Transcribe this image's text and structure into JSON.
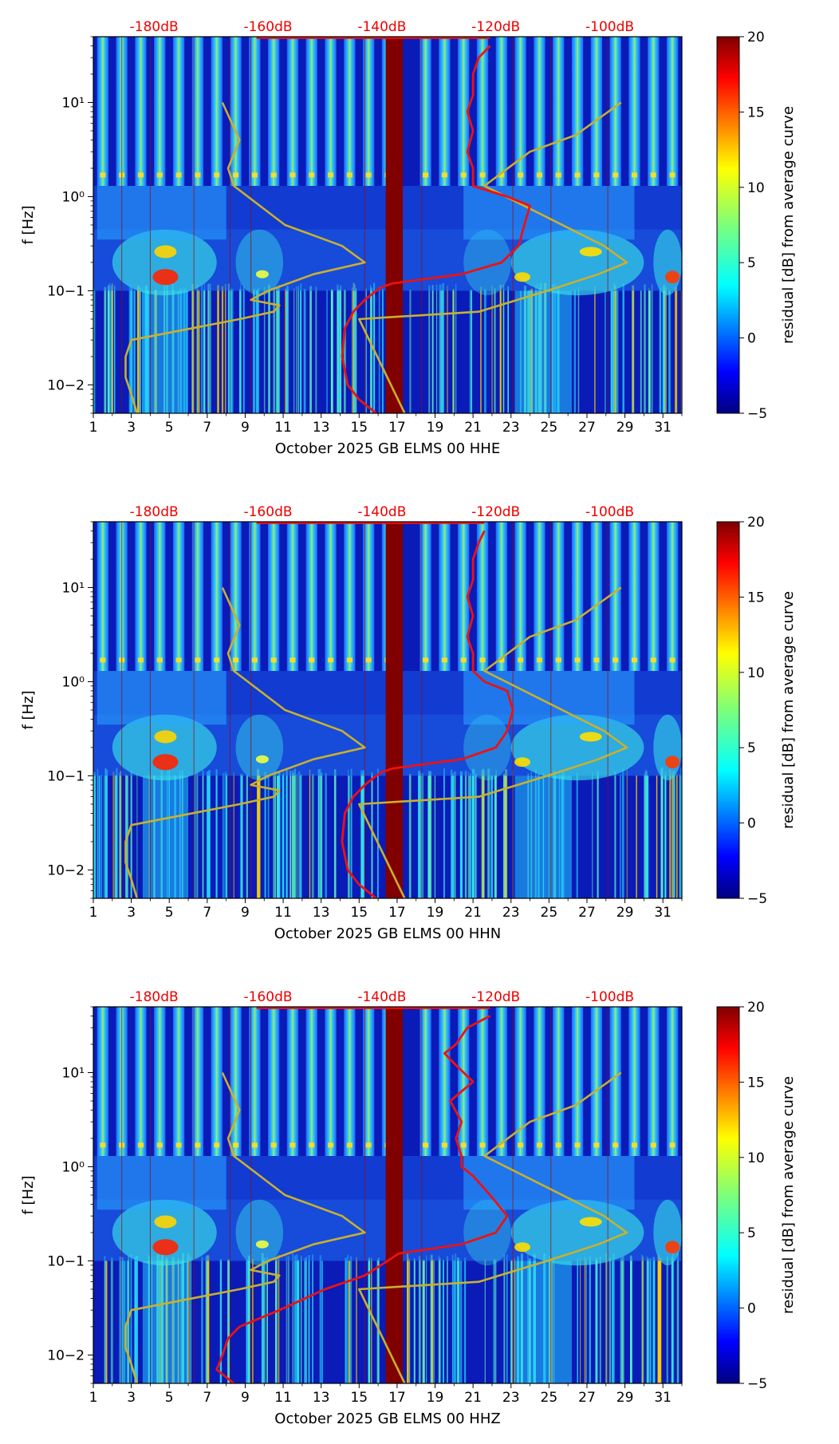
{
  "chart_data": [
    {
      "type": "heatmap",
      "title": "",
      "xlabel": "October 2025 GB ELMS 00 HHE",
      "ylabel": "f [Hz]",
      "x_ticks": [
        "1",
        "3",
        "5",
        "7",
        "9",
        "11",
        "13",
        "15",
        "17",
        "19",
        "21",
        "23",
        "25",
        "27",
        "29",
        "31"
      ],
      "xlim": [
        1,
        32
      ],
      "y_ticks": [
        "10−2",
        "10−1",
        "10⁰",
        "10¹"
      ],
      "ylim_hz": [
        0.005,
        50
      ],
      "top_axis_labels": [
        "-180dB",
        "-160dB",
        "-140dB",
        "-120dB",
        "-100dB"
      ],
      "top_axis_positions_day": [
        4.2,
        10.2,
        16.2,
        22.2,
        28.2
      ],
      "colorbar": {
        "label": "residual [dB] from average curve",
        "range": [
          -5,
          20
        ],
        "ticks": [
          "−5",
          "0",
          "5",
          "10",
          "15",
          "20"
        ]
      },
      "gap_days": [
        16.4,
        17.3
      ],
      "median_noise_curve_db": {
        "freq_hz": [
          0.005,
          0.007,
          0.01,
          0.02,
          0.04,
          0.06,
          0.08,
          0.1,
          0.11,
          0.12,
          0.15,
          0.2,
          0.3,
          0.5,
          0.8,
          1.0,
          1.3,
          1.5,
          2,
          3,
          5,
          8,
          12,
          20,
          30,
          40
        ],
        "power_db": [
          -141,
          -144,
          -146,
          -147,
          -146.5,
          -145,
          -143,
          -141,
          -140,
          -138,
          -126,
          -119,
          -116,
          -115,
          -114,
          -118,
          -124,
          -124,
          -124,
          -125,
          -124,
          -125,
          -124,
          -124,
          -123,
          -121
        ]
      },
      "nlnm_db": {
        "freq_hz": [
          0.005,
          0.008,
          0.012,
          0.02,
          0.03,
          0.05,
          0.06,
          0.07,
          0.08,
          0.1,
          0.15,
          0.2,
          0.3,
          0.5,
          1.3,
          2,
          4,
          10
        ],
        "power_db": [
          -183,
          -184,
          -185,
          -185,
          -184,
          -165,
          -159,
          -158,
          -163,
          -160,
          -152,
          -143,
          -147,
          -157,
          -166,
          -167,
          -165,
          -168
        ]
      },
      "nhnm_db": {
        "freq_hz": [
          0.005,
          0.05,
          0.06,
          0.1,
          0.15,
          0.2,
          0.3,
          1.3,
          3,
          4.5,
          10
        ],
        "power_db": [
          -136,
          -144,
          -123,
          -111,
          -102,
          -97,
          -101,
          -122,
          -114,
          -106,
          -98
        ]
      }
    },
    {
      "type": "heatmap",
      "title": "",
      "xlabel": "October 2025 GB ELMS 00 HHN",
      "ylabel": "f [Hz]",
      "x_ticks": [
        "1",
        "3",
        "5",
        "7",
        "9",
        "11",
        "13",
        "15",
        "17",
        "19",
        "21",
        "23",
        "25",
        "27",
        "29",
        "31"
      ],
      "xlim": [
        1,
        32
      ],
      "y_ticks": [
        "10−2",
        "10−1",
        "10⁰",
        "10¹"
      ],
      "ylim_hz": [
        0.005,
        50
      ],
      "top_axis_labels": [
        "-180dB",
        "-160dB",
        "-140dB",
        "-120dB",
        "-100dB"
      ],
      "top_axis_positions_day": [
        4.2,
        10.2,
        16.2,
        22.2,
        28.2
      ],
      "colorbar": {
        "label": "residual [dB] from average curve",
        "range": [
          -5,
          20
        ],
        "ticks": [
          "−5",
          "0",
          "5",
          "10",
          "15",
          "20"
        ]
      },
      "gap_days": [
        16.4,
        17.3
      ],
      "median_noise_curve_db": {
        "freq_hz": [
          0.005,
          0.007,
          0.01,
          0.02,
          0.04,
          0.06,
          0.08,
          0.1,
          0.11,
          0.12,
          0.15,
          0.2,
          0.3,
          0.5,
          0.8,
          1.0,
          1.3,
          1.5,
          2,
          3,
          5,
          8,
          12,
          20,
          30,
          40
        ],
        "power_db": [
          -141,
          -144,
          -146,
          -147,
          -146.5,
          -145,
          -143,
          -141,
          -140,
          -138,
          -126,
          -120,
          -118,
          -117,
          -118,
          -122,
          -124,
          -124,
          -124,
          -125,
          -124,
          -125,
          -124,
          -124,
          -123,
          -122
        ]
      },
      "nlnm_db": {
        "freq_hz": [
          0.005,
          0.008,
          0.012,
          0.02,
          0.03,
          0.05,
          0.06,
          0.07,
          0.08,
          0.1,
          0.15,
          0.2,
          0.3,
          0.5,
          1.3,
          2,
          4,
          10
        ],
        "power_db": [
          -183,
          -184,
          -185,
          -185,
          -184,
          -165,
          -159,
          -158,
          -163,
          -160,
          -152,
          -143,
          -147,
          -157,
          -166,
          -167,
          -165,
          -168
        ]
      },
      "nhnm_db": {
        "freq_hz": [
          0.005,
          0.05,
          0.06,
          0.1,
          0.15,
          0.2,
          0.3,
          1.3,
          3,
          4.5,
          10
        ],
        "power_db": [
          -136,
          -144,
          -123,
          -111,
          -102,
          -97,
          -101,
          -122,
          -114,
          -106,
          -98
        ]
      }
    },
    {
      "type": "heatmap",
      "title": "",
      "xlabel": "October 2025 GB ELMS 00 HHZ",
      "ylabel": "f [Hz]",
      "x_ticks": [
        "1",
        "3",
        "5",
        "7",
        "9",
        "11",
        "13",
        "15",
        "17",
        "19",
        "21",
        "23",
        "25",
        "27",
        "29",
        "31"
      ],
      "xlim": [
        1,
        32
      ],
      "y_ticks": [
        "10−2",
        "10−1",
        "10⁰",
        "10¹"
      ],
      "ylim_hz": [
        0.005,
        50
      ],
      "top_axis_labels": [
        "-180dB",
        "-160dB",
        "-140dB",
        "-120dB",
        "-100dB"
      ],
      "top_axis_positions_day": [
        4.2,
        10.2,
        16.2,
        22.2,
        28.2
      ],
      "colorbar": {
        "label": "residual [dB] from average curve",
        "range": [
          -5,
          20
        ],
        "ticks": [
          "−5",
          "0",
          "5",
          "10",
          "15",
          "20"
        ]
      },
      "gap_days": [
        16.4,
        17.3
      ],
      "median_noise_curve_db": {
        "freq_hz": [
          0.005,
          0.007,
          0.01,
          0.015,
          0.02,
          0.03,
          0.05,
          0.07,
          0.1,
          0.12,
          0.15,
          0.2,
          0.3,
          0.5,
          0.8,
          1.0,
          1.3,
          2,
          3,
          5,
          8,
          12,
          16,
          20,
          30,
          40
        ],
        "power_db": [
          -166,
          -169,
          -168,
          -167,
          -165,
          -158,
          -150,
          -143,
          -139,
          -137,
          -126,
          -120,
          -118,
          -121,
          -124,
          -126,
          -126,
          -127,
          -126,
          -128,
          -124,
          -127,
          -129,
          -127,
          -125,
          -121
        ]
      },
      "nlnm_db": {
        "freq_hz": [
          0.005,
          0.008,
          0.012,
          0.02,
          0.03,
          0.05,
          0.06,
          0.07,
          0.08,
          0.1,
          0.15,
          0.2,
          0.3,
          0.5,
          1.3,
          2,
          4,
          10
        ],
        "power_db": [
          -183,
          -184,
          -185,
          -185,
          -184,
          -165,
          -159,
          -158,
          -163,
          -160,
          -152,
          -143,
          -147,
          -157,
          -166,
          -167,
          -165,
          -168
        ]
      },
      "nhnm_db": {
        "freq_hz": [
          0.005,
          0.05,
          0.06,
          0.1,
          0.15,
          0.2,
          0.3,
          1.3,
          3,
          4.5,
          10
        ],
        "power_db": [
          -136,
          -144,
          -123,
          -111,
          -102,
          -97,
          -101,
          -122,
          -114,
          -106,
          -98
        ]
      }
    }
  ],
  "colors": {
    "median_curve": "#ee1111",
    "noise_model_curves": "#c9b02e",
    "top_axis_text": "#ee0000",
    "gap": "#800000"
  }
}
